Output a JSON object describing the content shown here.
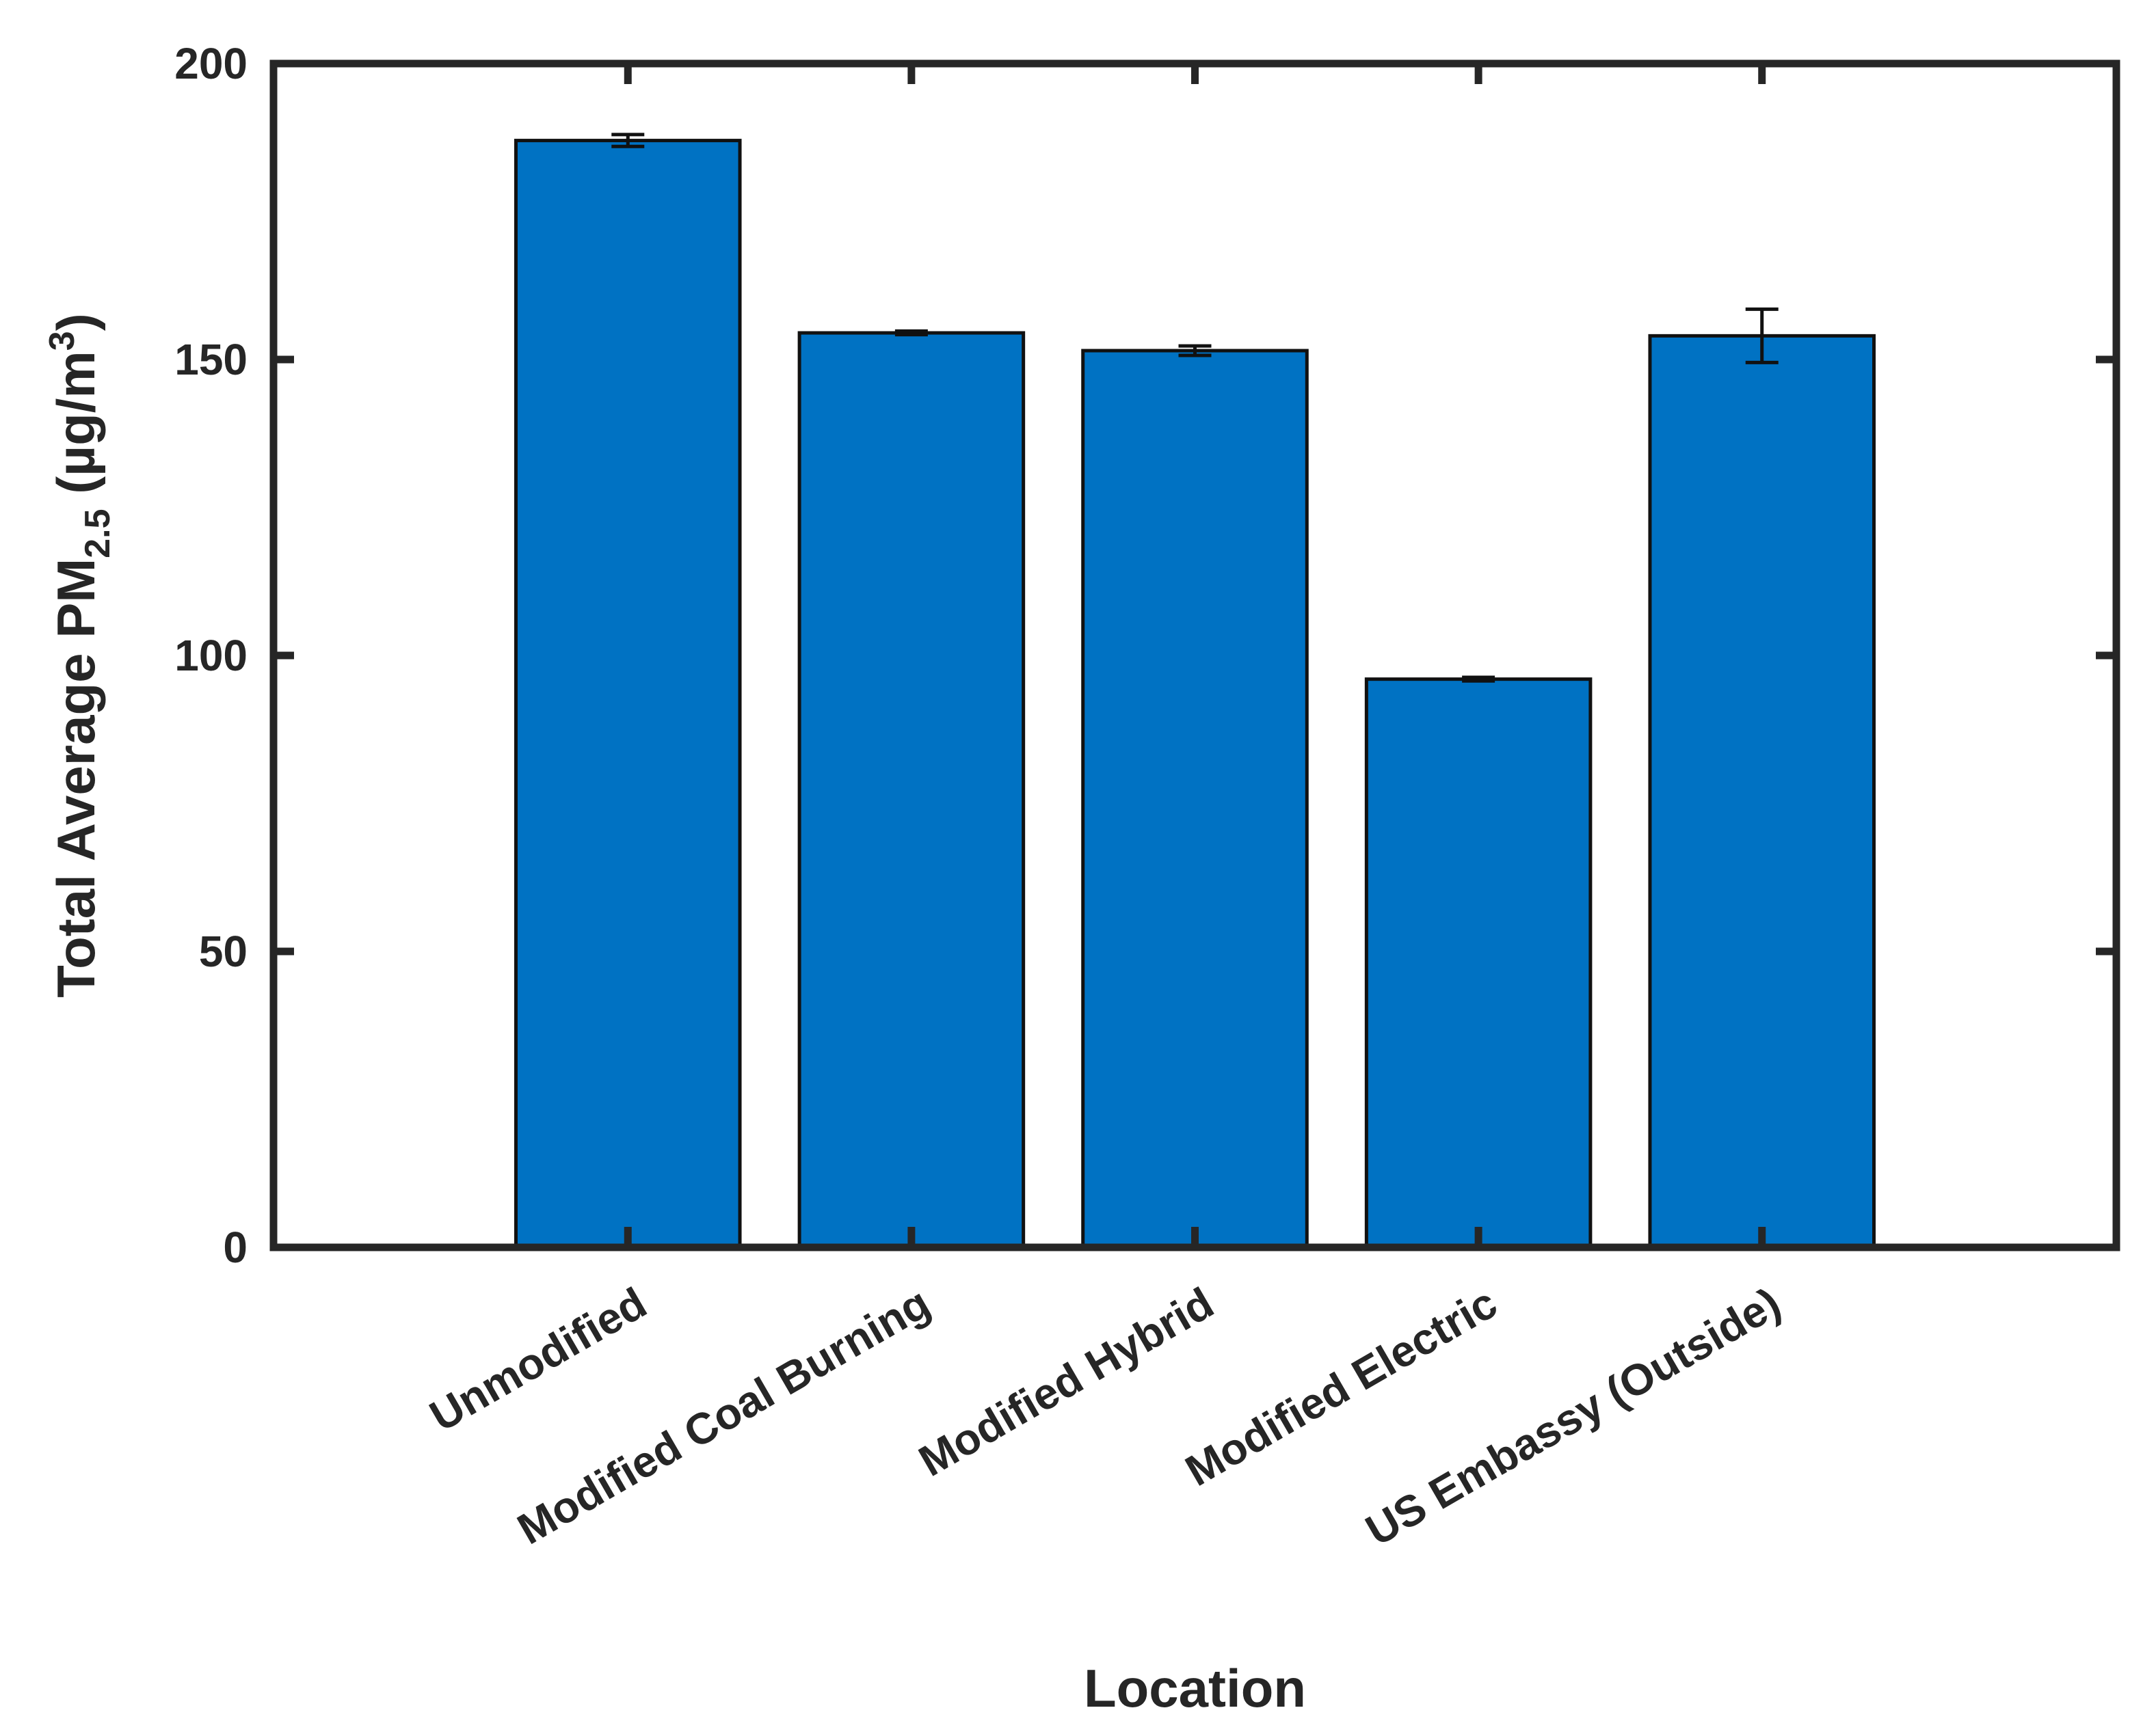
{
  "chart_data": {
    "type": "bar",
    "categories": [
      "Unmodified",
      "Modified Coal Burning",
      "Modified Hybrid",
      "Modified Electric",
      "US Embassy (Outside)"
    ],
    "series": [
      {
        "values": [
          187,
          154.5,
          151.5,
          96,
          154
        ],
        "error": [
          1,
          0.3,
          0.8,
          0.3,
          4.5
        ]
      }
    ],
    "xlabel": "Location",
    "ylabel": {
      "main": "Total Average PM",
      "subscript": "2.5",
      "units_open": " (µg/m",
      "superscript": "3",
      "units_close": ")"
    },
    "ylim": [
      0,
      200
    ],
    "yticks": [
      "0",
      "50",
      "100",
      "150",
      "200"
    ],
    "colors": {
      "bar": "#0072C3",
      "edge": "#111111",
      "axis": "#262626"
    },
    "grid": false,
    "legend": "none"
  }
}
